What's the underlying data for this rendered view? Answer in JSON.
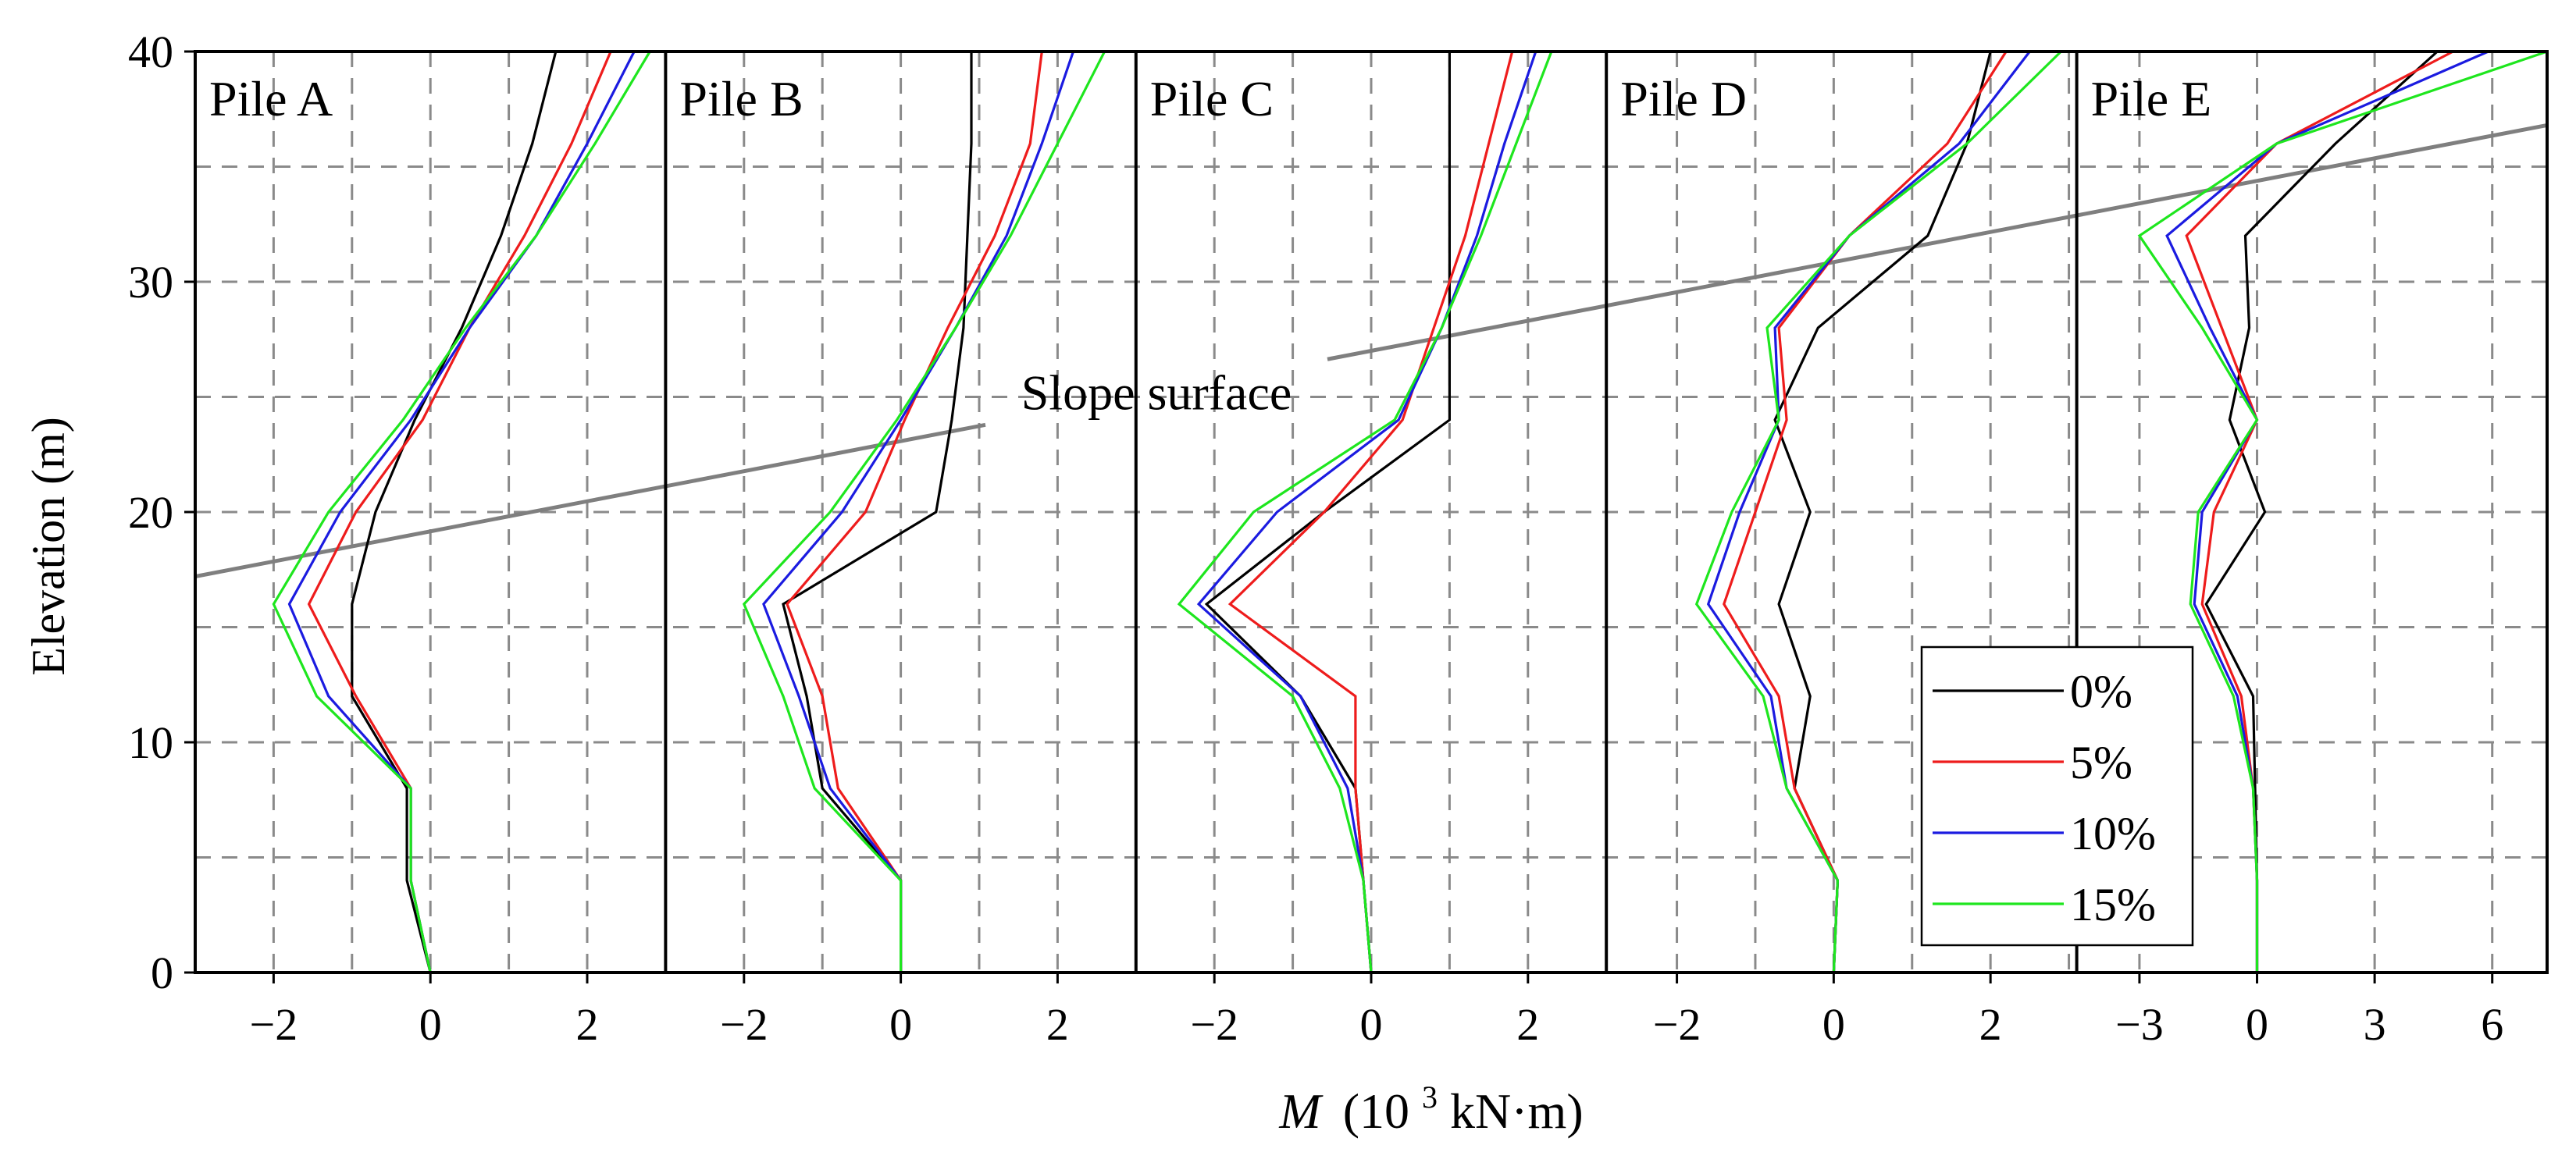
{
  "chart_data": {
    "type": "line",
    "ylabel": "Elevation (m)",
    "xlabel": {
      "italic": "M",
      "pre": "(10",
      "sup": "3",
      "post": "kN·m)"
    },
    "ylim": [
      0,
      40
    ],
    "yticks": [
      0,
      10,
      20,
      30,
      40
    ],
    "grid": true,
    "elevations": [
      0,
      4,
      8,
      12,
      16,
      20,
      24,
      28,
      32,
      36,
      40
    ],
    "legend": {
      "position": "bottom-right",
      "entries": [
        "0%",
        "5%",
        "10%",
        "15%"
      ]
    },
    "colors": {
      "0%": "#000000",
      "5%": "#ee1c1c",
      "10%": "#1b1be0",
      "15%": "#1ee61e"
    },
    "slope_surface": {
      "label": "Slope surface",
      "color": "#7f7f7f",
      "start": {
        "panel": 0,
        "m": -3.0,
        "y": 17.2
      },
      "end": {
        "panel": 4,
        "m": 7.4,
        "y": 36.8
      }
    },
    "panels": [
      {
        "name": "Pile A",
        "xlim": [
          -3,
          3
        ],
        "xticks": [
          -2,
          0,
          2
        ],
        "series": [
          {
            "name": "0%",
            "m": [
              0,
              -0.3,
              -0.3,
              -1.0,
              -1.0,
              -0.7,
              -0.2,
              0.4,
              0.9,
              1.3,
              1.6
            ]
          },
          {
            "name": "5%",
            "m": [
              0,
              -0.25,
              -0.25,
              -0.95,
              -1.55,
              -0.95,
              -0.1,
              0.5,
              1.2,
              1.8,
              2.3
            ]
          },
          {
            "name": "10%",
            "m": [
              0,
              -0.25,
              -0.25,
              -1.3,
              -1.8,
              -1.15,
              -0.25,
              0.5,
              1.35,
              2.0,
              2.6
            ]
          },
          {
            "name": "15%",
            "m": [
              0,
              -0.25,
              -0.25,
              -1.45,
              -2.0,
              -1.3,
              -0.35,
              0.45,
              1.35,
              2.1,
              2.8
            ]
          }
        ]
      },
      {
        "name": "Pile B",
        "xlim": [
          -3,
          3
        ],
        "xticks": [
          -2,
          0,
          2
        ],
        "series": [
          {
            "name": "0%",
            "m": [
              0,
              0,
              -1.0,
              -1.2,
              -1.5,
              0.45,
              0.65,
              0.8,
              0.85,
              0.9,
              0.9
            ]
          },
          {
            "name": "5%",
            "m": [
              0,
              0,
              -0.8,
              -1.0,
              -1.45,
              -0.45,
              0.05,
              0.6,
              1.2,
              1.65,
              1.8
            ]
          },
          {
            "name": "10%",
            "m": [
              0,
              0,
              -0.9,
              -1.3,
              -1.75,
              -0.75,
              0.0,
              0.7,
              1.35,
              1.8,
              2.2
            ]
          },
          {
            "name": "15%",
            "m": [
              0,
              0,
              -1.1,
              -1.5,
              -2.0,
              -0.9,
              -0.05,
              0.7,
              1.4,
              2.0,
              2.6
            ]
          }
        ]
      },
      {
        "name": "Pile C",
        "xlim": [
          -3,
          3
        ],
        "xticks": [
          -2,
          0,
          2
        ],
        "series": [
          {
            "name": "0%",
            "m": [
              0,
              -0.1,
              -0.2,
              -0.9,
              -2.1,
              -0.6,
              1.0,
              1.0,
              1.0,
              1.0,
              1.0
            ]
          },
          {
            "name": "5%",
            "m": [
              0,
              -0.1,
              -0.2,
              -0.2,
              -1.8,
              -0.6,
              0.4,
              0.8,
              1.2,
              1.5,
              1.8
            ]
          },
          {
            "name": "10%",
            "m": [
              0,
              -0.1,
              -0.3,
              -0.9,
              -2.2,
              -1.2,
              0.35,
              0.9,
              1.35,
              1.7,
              2.1
            ]
          },
          {
            "name": "15%",
            "m": [
              0,
              -0.1,
              -0.4,
              -1.0,
              -2.45,
              -1.5,
              0.3,
              0.9,
              1.4,
              1.85,
              2.3
            ]
          }
        ]
      },
      {
        "name": "Pile D",
        "xlim": [
          -2.9,
          3.1
        ],
        "xticks": [
          -2,
          0,
          2
        ],
        "series": [
          {
            "name": "0%",
            "m": [
              0,
              0.05,
              -0.5,
              -0.3,
              -0.7,
              -0.3,
              -0.75,
              -0.2,
              1.2,
              1.7,
              2.0
            ]
          },
          {
            "name": "5%",
            "m": [
              0,
              0.05,
              -0.5,
              -0.7,
              -1.4,
              -1.0,
              -0.6,
              -0.7,
              0.2,
              1.45,
              2.2
            ]
          },
          {
            "name": "10%",
            "m": [
              0,
              0.05,
              -0.6,
              -0.8,
              -1.6,
              -1.2,
              -0.7,
              -0.75,
              0.2,
              1.6,
              2.5
            ]
          },
          {
            "name": "15%",
            "m": [
              0,
              0.05,
              -0.6,
              -0.9,
              -1.75,
              -1.3,
              -0.7,
              -0.85,
              0.2,
              1.7,
              2.9
            ]
          }
        ]
      },
      {
        "name": "Pile E",
        "xlim": [
          -4.6,
          7.4
        ],
        "xticks": [
          -3,
          0,
          3,
          6
        ],
        "series": [
          {
            "name": "0%",
            "m": [
              0,
              0,
              -0.05,
              -0.1,
              -1.3,
              0.2,
              -0.7,
              -0.2,
              -0.3,
              2.0,
              4.6
            ]
          },
          {
            "name": "5%",
            "m": [
              0,
              0,
              -0.1,
              -0.4,
              -1.4,
              -1.1,
              0,
              -0.9,
              -1.8,
              0.5,
              5.0
            ]
          },
          {
            "name": "10%",
            "m": [
              0,
              0,
              -0.1,
              -0.5,
              -1.6,
              -1.4,
              0,
              -1.2,
              -2.3,
              0.5,
              5.9
            ]
          },
          {
            "name": "15%",
            "m": [
              0,
              0,
              -0.1,
              -0.6,
              -1.7,
              -1.5,
              0,
              -1.4,
              -3.0,
              0.5,
              7.4
            ]
          }
        ]
      }
    ]
  }
}
